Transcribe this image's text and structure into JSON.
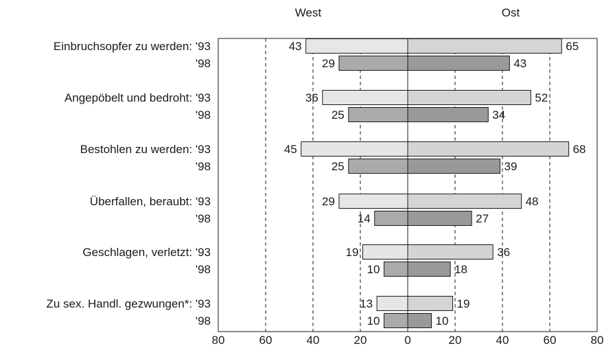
{
  "chart_data": {
    "type": "bar",
    "orientation": "horizontal-diverging",
    "headers": {
      "left": "West",
      "right": "Ost"
    },
    "categories": [
      {
        "label": "Einbruchsopfer zu werden: '93",
        "west": 43,
        "ost": 65
      },
      {
        "label": "'98",
        "west": 29,
        "ost": 43
      },
      {
        "label": "Angepöbelt und bedroht: '93",
        "west": 36,
        "ost": 52
      },
      {
        "label": "'98",
        "west": 25,
        "ost": 34
      },
      {
        "label": "Bestohlen zu werden: '93",
        "west": 45,
        "ost": 68
      },
      {
        "label": "'98",
        "west": 25,
        "ost": 39
      },
      {
        "label": "Überfallen, beraubt: '93",
        "west": 29,
        "ost": 48
      },
      {
        "label": "'98",
        "west": 14,
        "ost": 27
      },
      {
        "label": "Geschlagen, verletzt: '93",
        "west": 19,
        "ost": 36
      },
      {
        "label": "'98",
        "west": 10,
        "ost": 18
      },
      {
        "label": "Zu sex. Handl. gezwungen*: '93",
        "west": 13,
        "ost": 19
      },
      {
        "label": "'98",
        "west": 10,
        "ost": 10
      }
    ],
    "x_ticks": [
      "80",
      "60",
      "40",
      "20",
      "0",
      "20",
      "40",
      "60",
      "80"
    ],
    "xlim": [
      -80,
      80
    ],
    "grid": "dashed-vertical",
    "colors": {
      "west_93": "#e6e6e6",
      "west_98": "#aaaaaa",
      "ost_93": "#d4d4d4",
      "ost_98": "#999999",
      "stroke": "#1a1a1a"
    }
  }
}
